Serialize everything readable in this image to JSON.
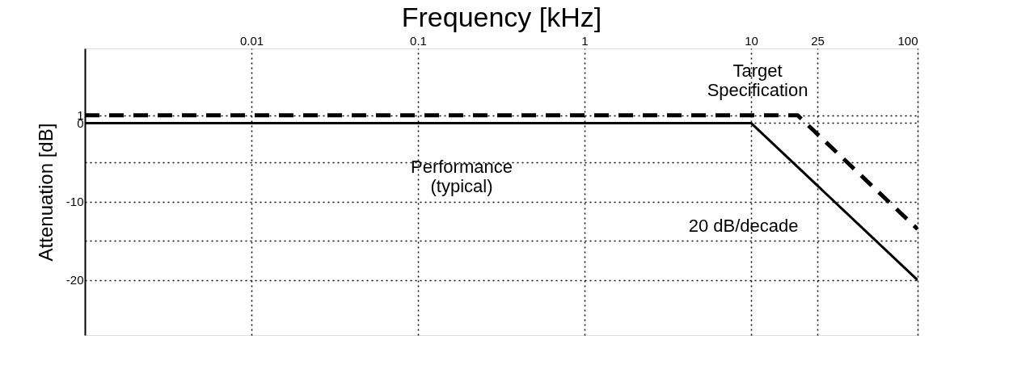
{
  "chart_data": {
    "type": "line",
    "xlabel": "Frequency [kHz]",
    "ylabel": "Attenuation [dB]",
    "log": "x",
    "xlim": [
      0.001,
      100
    ],
    "xticks": [
      0.01,
      0.1,
      1,
      10,
      25,
      100
    ],
    "ylim": [
      -27,
      9.5
    ],
    "yticks": [
      1,
      0,
      {
        "value": -5,
        "label": null
      },
      -10,
      {
        "value": -15,
        "label": null
      },
      -20
    ],
    "grid": true,
    "marker": "none",
    "series": [
      {
        "x": [
          0.001,
          10,
          100
        ],
        "values": [
          0,
          0,
          -20
        ],
        "color": "#000000",
        "line_style": "solid"
      },
      {
        "x": [
          0.001,
          19,
          100
        ],
        "values": [
          1,
          1,
          -13.5
        ],
        "color": "#000000",
        "line_style": "dashed"
      }
    ],
    "annotations": [
      {
        "text": "Performance (typical)",
        "x": 0.5,
        "y": 0
      },
      {
        "text": "Target Specification",
        "x": 4,
        "y": 1
      },
      "20 dB/decade"
    ]
  }
}
